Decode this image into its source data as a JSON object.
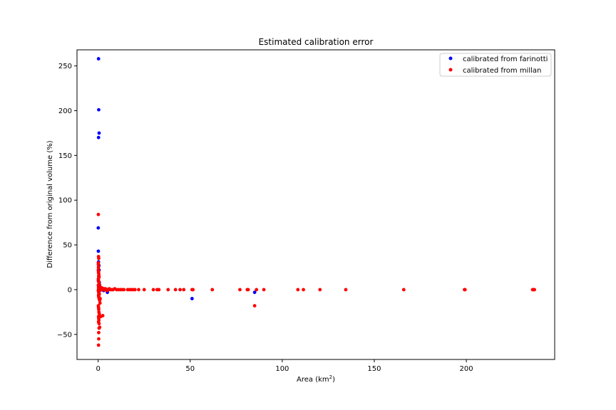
{
  "chart_data": {
    "type": "scatter",
    "title": "Estimated calibration error",
    "xlabel_main": "Area (km",
    "xlabel_sup": "2",
    "xlabel_tail": ")",
    "ylabel": "Difference from original volume (%)",
    "xlim": [
      -11.5,
      248
    ],
    "ylim": [
      -78,
      268
    ],
    "xticks": [
      0,
      50,
      100,
      150,
      200
    ],
    "yticks": [
      -50,
      0,
      50,
      100,
      150,
      200,
      250
    ],
    "grid": false,
    "legend_position": "top-right",
    "colors": {
      "farinotti": "#0000ff",
      "millan": "#ff0000"
    },
    "series": [
      {
        "name": "calibrated from farinotti",
        "color": "#0000ff",
        "x": [
          0.2,
          0.3,
          0.5,
          0.2,
          0.05,
          0.1,
          0.2,
          0.4,
          0.5,
          0.3,
          0.1,
          0.6,
          0.8,
          1.0,
          0.4,
          0.2,
          1.2,
          2.0,
          3.0,
          5.0,
          8.0,
          51,
          85,
          4.5,
          1.5,
          0.9,
          0.7,
          0.3
        ],
        "y": [
          258,
          201,
          175,
          170,
          69,
          43,
          31,
          27,
          22,
          15,
          10,
          8,
          5,
          3,
          2,
          0,
          1,
          0,
          -1,
          -3,
          0,
          -10,
          -3,
          0,
          1,
          -1,
          2,
          -2
        ]
      },
      {
        "name": "calibrated from millan",
        "color": "#ff0000",
        "x": [
          0.1,
          0.2,
          0.3,
          0.1,
          0.15,
          0.05,
          0.2,
          0.3,
          0.4,
          0.5,
          0.1,
          0.2,
          0.3,
          0.4,
          0.6,
          0.1,
          0.2,
          0.3,
          0.5,
          0.7,
          0.1,
          0.2,
          0.3,
          0.4,
          0.6,
          0.2,
          0.3,
          0.5,
          0.8,
          1.0,
          0.1,
          0.2,
          0.3,
          0.4,
          0.6,
          0.2,
          0.3,
          0.4,
          0.2,
          0.5,
          0.8,
          1.1,
          1.5,
          2.5,
          0.3,
          0.2,
          0.5,
          0.3,
          0.1,
          0.4,
          0.6,
          0.2,
          0.3,
          0.2,
          0.4,
          0.2,
          0.3,
          0.7,
          0.9,
          1.2,
          1.4,
          1.6,
          1.8,
          2.0,
          2.2,
          2.5,
          2.8,
          3.0,
          3.3,
          3.6,
          4.0,
          4.3,
          4.7,
          5.0,
          5.5,
          6.0,
          6.5,
          7.0,
          8.0,
          9.0,
          10.0,
          11.0,
          12.0,
          13.0,
          14.0,
          16.0,
          17.0,
          18.0,
          19.0,
          20.0,
          22.0,
          25.0,
          30.0,
          32.0,
          33.0,
          38.0,
          42.0,
          44.5,
          46.5,
          51.0,
          51.5,
          62.0,
          77.0,
          81.0,
          81.5,
          86.0,
          90.0,
          108.5,
          111.5,
          120.5,
          134.5,
          166.0,
          199.0,
          199.3,
          236.0,
          236.5,
          237.0,
          85.0,
          0.5,
          0.3,
          1.0,
          2.0
        ],
        "y": [
          84,
          37,
          35,
          30,
          25,
          22,
          20,
          18,
          16,
          14,
          12,
          10,
          9,
          8,
          6,
          5,
          4,
          3,
          2,
          1,
          -1,
          -2,
          -3,
          -4,
          -5,
          -6,
          -8,
          -10,
          -12,
          -15,
          -18,
          -20,
          -22,
          -25,
          -27,
          -30,
          -32,
          -34,
          -36,
          -43,
          -42,
          -10,
          -30,
          -29,
          -55,
          -62,
          -38,
          -48,
          28,
          0,
          1,
          0,
          -1,
          2,
          -2,
          19,
          15,
          1,
          0,
          2,
          0,
          1,
          0,
          2,
          1,
          0,
          1,
          0,
          1,
          0,
          1,
          0,
          -1,
          0,
          0,
          1,
          0,
          0,
          0,
          1,
          0,
          0,
          0,
          0,
          0,
          0,
          0,
          0,
          0,
          0,
          0,
          0,
          0,
          0,
          0,
          0,
          0,
          0,
          0,
          0,
          0,
          0,
          0,
          0,
          0,
          0,
          0,
          0,
          0,
          0,
          0,
          0,
          0,
          0,
          0,
          0,
          0,
          -18,
          5,
          -7,
          3,
          1
        ]
      }
    ]
  }
}
